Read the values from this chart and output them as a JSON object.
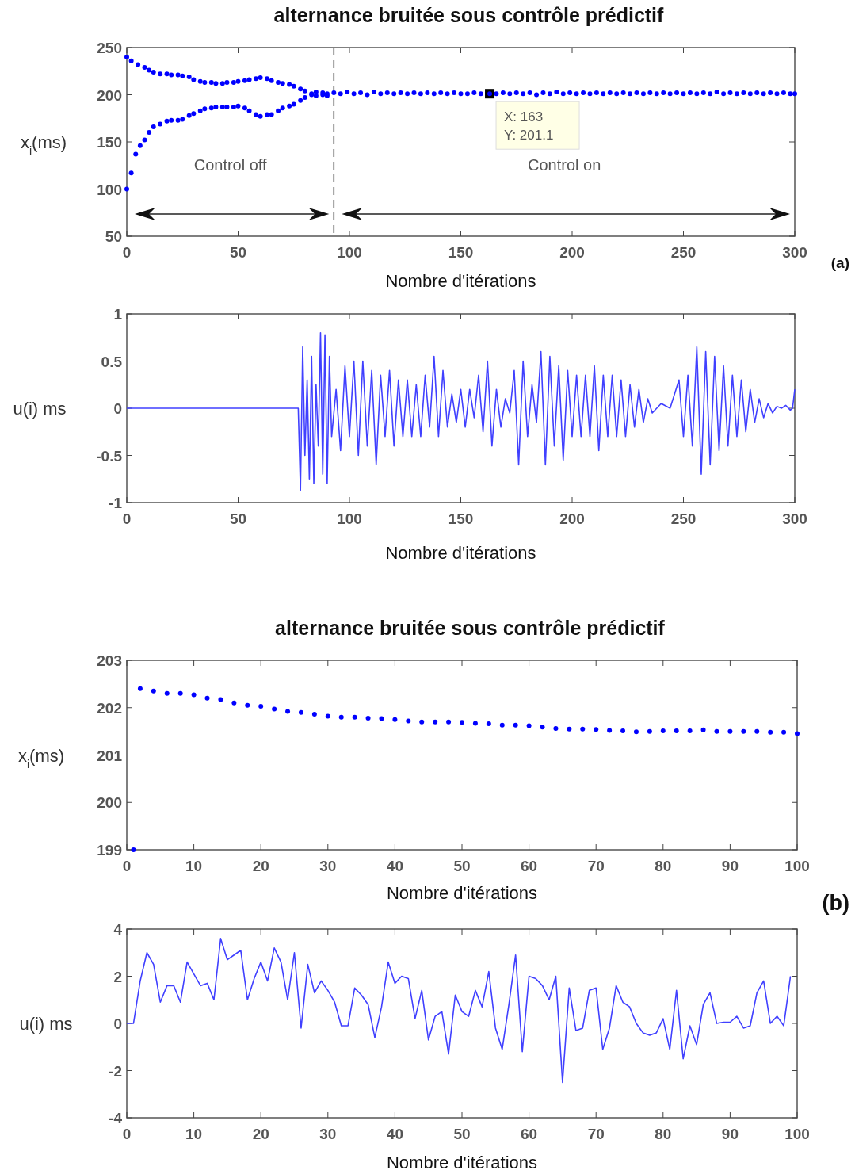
{
  "chart_data": [
    {
      "type": "scatter",
      "title": "alternance bruitée sous contrôle prédictif",
      "xlabel": "Nombre d'itérations",
      "ylabel": "x$_{i}$(ms)",
      "xlim": [
        0,
        300
      ],
      "ylim": [
        50,
        250
      ],
      "xticks": [
        0,
        50,
        100,
        150,
        200,
        250,
        300
      ],
      "yticks": [
        50,
        100,
        150,
        200,
        250
      ],
      "marker": "circle",
      "ref_lines": [
        {
          "axis": "x",
          "value": 93,
          "line_style": "dashed",
          "color": "#333333"
        }
      ],
      "annotations": [
        "Control off",
        "Control on",
        {
          "text": "X: 163\nY: 201.1",
          "x": 163,
          "y": 201.1
        },
        "(a)"
      ],
      "series": [
        {
          "color": "#0000ff",
          "x": [
            0,
            2,
            5,
            8,
            10,
            12,
            15,
            18,
            20,
            23,
            25,
            28,
            30,
            33,
            35,
            38,
            40,
            43,
            45,
            48,
            50,
            53,
            55,
            58,
            60,
            63,
            65,
            68,
            70,
            73,
            75,
            78,
            80,
            83,
            85,
            88,
            90
          ],
          "values": [
            240,
            236,
            232,
            229,
            226,
            224,
            222,
            222,
            221,
            221,
            220,
            219,
            216,
            214,
            213,
            213,
            212,
            212,
            213,
            213,
            214,
            215,
            216,
            217,
            218,
            217,
            215,
            213,
            212,
            211,
            209,
            206,
            204,
            201,
            199,
            200,
            201
          ]
        },
        {
          "color": "#0000ff",
          "x": [
            0,
            2,
            4,
            6,
            8,
            10,
            12,
            15,
            18,
            20,
            23,
            25,
            28,
            30,
            33,
            35,
            38,
            40,
            43,
            45,
            48,
            50,
            53,
            55,
            58,
            60,
            63,
            65,
            68,
            70,
            73,
            75,
            78,
            80,
            83,
            85,
            88,
            90
          ],
          "values": [
            100,
            117,
            137,
            146,
            152,
            160,
            166,
            169,
            172,
            173,
            173,
            174,
            178,
            180,
            183,
            185,
            186,
            187,
            187,
            187,
            187,
            188,
            186,
            183,
            179,
            177,
            179,
            179,
            183,
            186,
            188,
            190,
            194,
            197,
            200,
            203,
            202,
            199
          ]
        },
        {
          "color": "#0000ff",
          "x": [
            93,
            96,
            99,
            102,
            105,
            108,
            111,
            114,
            117,
            120,
            123,
            126,
            129,
            132,
            135,
            138,
            141,
            144,
            147,
            150,
            153,
            156,
            159,
            163,
            166,
            169,
            172,
            175,
            178,
            181,
            184,
            187,
            190,
            193,
            196,
            199,
            202,
            205,
            208,
            211,
            214,
            217,
            220,
            223,
            226,
            229,
            232,
            235,
            238,
            241,
            244,
            247,
            250,
            253,
            256,
            259,
            262,
            265,
            268,
            271,
            274,
            277,
            280,
            283,
            286,
            289,
            292,
            295,
            298,
            300
          ],
          "values": [
            202,
            201,
            203,
            201,
            202,
            200,
            203,
            201,
            202,
            201,
            202,
            201,
            202,
            201,
            202,
            201,
            202,
            201,
            202,
            201,
            201,
            202,
            201,
            201,
            201,
            202,
            201,
            202,
            201,
            202,
            200,
            202,
            201,
            203,
            201,
            202,
            201,
            202,
            201,
            202,
            201,
            202,
            201,
            202,
            201,
            202,
            201,
            202,
            201,
            202,
            201,
            202,
            201,
            202,
            201,
            202,
            201,
            203,
            201,
            202,
            201,
            202,
            201,
            202,
            201,
            202,
            201,
            202,
            201,
            201
          ]
        }
      ]
    },
    {
      "type": "line",
      "xlabel": "Nombre d'itérations",
      "ylabel": "u(i) ms",
      "xlim": [
        0,
        300
      ],
      "ylim": [
        -1,
        1
      ],
      "xticks": [
        0,
        50,
        100,
        150,
        200,
        250,
        300
      ],
      "yticks": [
        -1,
        -0.5,
        0,
        0.5,
        1
      ],
      "series": [
        {
          "color": "#4040ff",
          "x": [
            0,
            77,
            78,
            79,
            80,
            81,
            82,
            83,
            84,
            85,
            86,
            87,
            88,
            89,
            90,
            91,
            92,
            94,
            96,
            98,
            100,
            102,
            104,
            106,
            108,
            110,
            112,
            114,
            116,
            118,
            120,
            122,
            124,
            126,
            128,
            130,
            132,
            134,
            136,
            138,
            140,
            142,
            144,
            146,
            148,
            150,
            152,
            154,
            156,
            158,
            160,
            162,
            164,
            166,
            168,
            170,
            172,
            174,
            176,
            178,
            180,
            182,
            184,
            186,
            188,
            190,
            192,
            194,
            196,
            198,
            200,
            202,
            204,
            206,
            208,
            210,
            212,
            214,
            216,
            218,
            220,
            222,
            224,
            226,
            228,
            230,
            232,
            234,
            236,
            240,
            244,
            248,
            250,
            252,
            254,
            256,
            258,
            260,
            262,
            264,
            266,
            268,
            270,
            272,
            274,
            276,
            278,
            280,
            282,
            284,
            286,
            288,
            290,
            292,
            294,
            296,
            298,
            299,
            300
          ],
          "values": [
            0,
            0,
            -0.87,
            0.65,
            -0.5,
            0.3,
            -0.75,
            0.55,
            -0.8,
            0.25,
            -0.4,
            0.8,
            -0.7,
            0.78,
            -0.8,
            0.55,
            -0.3,
            0.2,
            -0.45,
            0.45,
            -0.3,
            0.5,
            -0.5,
            0.5,
            -0.4,
            0.4,
            -0.6,
            0.35,
            -0.3,
            0.4,
            -0.4,
            0.3,
            -0.3,
            0.3,
            -0.3,
            0.25,
            -0.3,
            0.35,
            -0.2,
            0.55,
            -0.3,
            0.4,
            -0.2,
            0.15,
            -0.15,
            0.2,
            -0.2,
            0.2,
            -0.1,
            0.35,
            -0.25,
            0.5,
            -0.4,
            0.2,
            -0.2,
            0.1,
            -0.05,
            0.4,
            -0.6,
            0.5,
            -0.3,
            0.25,
            -0.15,
            0.6,
            -0.6,
            0.55,
            -0.4,
            0.45,
            -0.55,
            0.4,
            -0.3,
            0.35,
            -0.3,
            0.35,
            -0.3,
            0.45,
            -0.45,
            0.35,
            -0.3,
            0.35,
            -0.3,
            0.3,
            -0.3,
            0.25,
            -0.2,
            0.2,
            -0.15,
            0.1,
            -0.05,
            0.05,
            0,
            0.3,
            -0.3,
            0.35,
            -0.4,
            0.65,
            -0.7,
            0.6,
            -0.6,
            0.55,
            -0.45,
            0.45,
            -0.4,
            0.35,
            -0.3,
            0.3,
            -0.25,
            0.2,
            -0.15,
            0.1,
            -0.1,
            0.05,
            -0.05,
            0.02,
            0,
            0.03,
            -0.02,
            0,
            0.2
          ]
        }
      ]
    },
    {
      "type": "scatter",
      "title": "alternance bruitée sous contrôle prédictif",
      "xlabel": "Nombre d'itérations",
      "ylabel": "x$_{i}$(ms)",
      "xlim": [
        0,
        100
      ],
      "ylim": [
        199,
        203
      ],
      "xticks": [
        0,
        10,
        20,
        30,
        40,
        50,
        60,
        70,
        80,
        90,
        100
      ],
      "yticks": [
        199,
        200,
        201,
        202,
        203
      ],
      "marker": "circle",
      "annotations": [
        "(b)"
      ],
      "series": [
        {
          "color": "#0000ff",
          "x": [
            1,
            2,
            4,
            6,
            8,
            10,
            12,
            14,
            16,
            18,
            20,
            22,
            24,
            26,
            28,
            30,
            32,
            34,
            36,
            38,
            40,
            42,
            44,
            46,
            48,
            50,
            52,
            54,
            56,
            58,
            60,
            62,
            64,
            66,
            68,
            70,
            72,
            74,
            76,
            78,
            80,
            82,
            84,
            86,
            88,
            90,
            92,
            94,
            96,
            98,
            100
          ],
          "values": [
            199,
            202.4,
            202.35,
            202.3,
            202.3,
            202.27,
            202.2,
            202.17,
            202.1,
            202.05,
            202.03,
            201.97,
            201.92,
            201.9,
            201.86,
            201.82,
            201.8,
            201.8,
            201.78,
            201.77,
            201.75,
            201.72,
            201.7,
            201.7,
            201.7,
            201.69,
            201.67,
            201.66,
            201.63,
            201.63,
            201.62,
            201.59,
            201.56,
            201.55,
            201.55,
            201.54,
            201.52,
            201.51,
            201.49,
            201.5,
            201.51,
            201.51,
            201.51,
            201.53,
            201.5,
            201.5,
            201.5,
            201.5,
            201.48,
            201.48,
            201.45
          ]
        }
      ]
    },
    {
      "type": "line",
      "xlabel": "Nombre d'itérations",
      "ylabel": "u(i) ms",
      "xlim": [
        0,
        100
      ],
      "ylim": [
        -4,
        4
      ],
      "xticks": [
        0,
        10,
        20,
        30,
        40,
        50,
        60,
        70,
        80,
        90,
        100
      ],
      "yticks": [
        -4,
        -2,
        0,
        2,
        4
      ],
      "series": [
        {
          "color": "#4040ff",
          "x": [
            0,
            1,
            2,
            3,
            4,
            5,
            6,
            7,
            8,
            9,
            10,
            11,
            12,
            13,
            14,
            15,
            16,
            17,
            18,
            19,
            20,
            21,
            22,
            23,
            24,
            25,
            26,
            27,
            28,
            29,
            30,
            31,
            32,
            33,
            34,
            35,
            36,
            37,
            38,
            39,
            40,
            41,
            42,
            43,
            44,
            45,
            46,
            47,
            48,
            49,
            50,
            51,
            52,
            53,
            54,
            55,
            56,
            57,
            58,
            59,
            60,
            61,
            62,
            63,
            64,
            65,
            66,
            67,
            68,
            69,
            70,
            71,
            72,
            73,
            74,
            75,
            76,
            77,
            78,
            79,
            80,
            81,
            82,
            83,
            84,
            85,
            86,
            87,
            88,
            89,
            90,
            91,
            92,
            93,
            94,
            95,
            96,
            97,
            98,
            99
          ],
          "values": [
            0,
            0,
            1.8,
            3,
            2.5,
            0.9,
            1.6,
            1.6,
            0.9,
            2.6,
            2.1,
            1.6,
            1.7,
            1,
            3.6,
            2.7,
            2.9,
            3.1,
            1,
            1.9,
            2.6,
            1.8,
            3.2,
            2.6,
            1,
            3,
            -0.2,
            2.5,
            1.3,
            1.8,
            1.4,
            0.9,
            -0.1,
            -0.1,
            1.5,
            1.2,
            0.8,
            -0.6,
            0.7,
            2.6,
            1.7,
            2,
            1.9,
            0.2,
            1.4,
            -0.7,
            0.3,
            0.5,
            -1.3,
            1.2,
            0.5,
            0.3,
            1.4,
            0.7,
            2.2,
            -0.2,
            -1.1,
            0.8,
            2.9,
            -1.2,
            2,
            1.9,
            1.6,
            1,
            2,
            -2.5,
            1.5,
            -0.3,
            -0.2,
            1.4,
            1.5,
            -1.1,
            -0.2,
            1.6,
            0.9,
            0.7,
            0,
            -0.4,
            -0.5,
            -0.4,
            0.2,
            -1.1,
            1.4,
            -1.5,
            -0.1,
            -0.9,
            0.8,
            1.3,
            0,
            0.05,
            0.05,
            0.3,
            -0.2,
            -0.1,
            1.3,
            1.8,
            0,
            0.3,
            -0.1,
            2
          ]
        }
      ]
    }
  ]
}
